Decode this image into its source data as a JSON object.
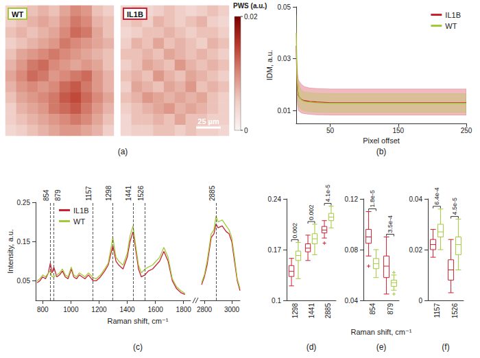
{
  "chart_data": [
    {
      "type": "heatmap",
      "label": "(a)",
      "images": [
        {
          "title": "WT",
          "color": "#a3c93a",
          "cells": [
            [
              0.004,
              0.005,
              0.006,
              0.007,
              0.006,
              0.008,
              0.01,
              0.009,
              0.006,
              0.005
            ],
            [
              0.005,
              0.006,
              0.007,
              0.008,
              0.007,
              0.009,
              0.011,
              0.01,
              0.007,
              0.006
            ],
            [
              0.006,
              0.007,
              0.006,
              0.007,
              0.008,
              0.01,
              0.012,
              0.011,
              0.008,
              0.006
            ],
            [
              0.005,
              0.006,
              0.007,
              0.008,
              0.009,
              0.011,
              0.01,
              0.009,
              0.008,
              0.007
            ],
            [
              0.006,
              0.008,
              0.009,
              0.01,
              0.011,
              0.01,
              0.009,
              0.008,
              0.007,
              0.006
            ],
            [
              0.007,
              0.009,
              0.011,
              0.012,
              0.01,
              0.009,
              0.008,
              0.009,
              0.008,
              0.006
            ],
            [
              0.008,
              0.01,
              0.012,
              0.011,
              0.009,
              0.01,
              0.011,
              0.012,
              0.009,
              0.007
            ],
            [
              0.007,
              0.009,
              0.01,
              0.009,
              0.01,
              0.012,
              0.013,
              0.011,
              0.009,
              0.007
            ],
            [
              0.006,
              0.008,
              0.009,
              0.01,
              0.011,
              0.013,
              0.014,
              0.012,
              0.01,
              0.008
            ],
            [
              0.005,
              0.007,
              0.008,
              0.009,
              0.011,
              0.012,
              0.013,
              0.011,
              0.009,
              0.007
            ],
            [
              0.005,
              0.006,
              0.007,
              0.008,
              0.009,
              0.01,
              0.011,
              0.01,
              0.008,
              0.006
            ],
            [
              0.004,
              0.005,
              0.006,
              0.007,
              0.008,
              0.009,
              0.009,
              0.008,
              0.007,
              0.005
            ]
          ]
        },
        {
          "title": "IL1B",
          "color": "#cc1f2f",
          "scale_bar": "25 µm",
          "cells": [
            [
              0.004,
              0.005,
              0.004,
              0.005,
              0.006,
              0.005,
              0.004,
              0.005,
              0.006,
              0.005
            ],
            [
              0.005,
              0.006,
              0.005,
              0.007,
              0.006,
              0.005,
              0.006,
              0.007,
              0.005,
              0.004
            ],
            [
              0.004,
              0.005,
              0.006,
              0.006,
              0.007,
              0.006,
              0.005,
              0.006,
              0.006,
              0.005
            ],
            [
              0.005,
              0.007,
              0.006,
              0.008,
              0.006,
              0.007,
              0.006,
              0.005,
              0.007,
              0.006
            ],
            [
              0.006,
              0.006,
              0.007,
              0.006,
              0.008,
              0.007,
              0.006,
              0.007,
              0.006,
              0.005
            ],
            [
              0.005,
              0.006,
              0.008,
              0.007,
              0.006,
              0.009,
              0.007,
              0.006,
              0.007,
              0.006
            ],
            [
              0.006,
              0.007,
              0.006,
              0.009,
              0.007,
              0.006,
              0.008,
              0.007,
              0.006,
              0.005
            ],
            [
              0.005,
              0.008,
              0.007,
              0.006,
              0.008,
              0.007,
              0.009,
              0.006,
              0.007,
              0.006
            ],
            [
              0.006,
              0.007,
              0.009,
              0.008,
              0.007,
              0.008,
              0.007,
              0.008,
              0.006,
              0.005
            ],
            [
              0.005,
              0.006,
              0.007,
              0.008,
              0.009,
              0.007,
              0.008,
              0.007,
              0.006,
              0.005
            ],
            [
              0.004,
              0.006,
              0.006,
              0.007,
              0.006,
              0.008,
              0.006,
              0.006,
              0.005,
              0.005
            ],
            [
              0.004,
              0.005,
              0.005,
              0.006,
              0.006,
              0.005,
              0.006,
              0.005,
              0.005,
              0.004
            ]
          ]
        }
      ],
      "colorbar": {
        "title": "PWS (a.u.)",
        "range": [
          0,
          0.02
        ],
        "ticks": [
          0,
          0.02
        ]
      }
    },
    {
      "type": "line",
      "label": "(b)",
      "xlabel": "Pixel offset",
      "ylabel": "IDM, a.u.",
      "x": [
        0,
        1,
        2,
        3,
        5,
        8,
        12,
        20,
        30,
        50,
        100,
        150,
        200,
        250
      ],
      "xlim": [
        0,
        250
      ],
      "xticks": [
        50,
        150,
        250
      ],
      "ylim": [
        0.005,
        0.05
      ],
      "yticks": [
        0.01,
        0.03,
        0.05
      ],
      "legend": "upper right",
      "series": [
        {
          "name": "IL1B",
          "color": "#cc1f2f",
          "values": [
            0.035,
            0.022,
            0.018,
            0.016,
            0.015,
            0.0142,
            0.0138,
            0.0135,
            0.0133,
            0.013,
            0.013,
            0.013,
            0.013,
            0.013
          ],
          "lower": [
            0.028,
            0.015,
            0.012,
            0.01,
            0.0095,
            0.009,
            0.0088,
            0.0085,
            0.0083,
            0.0082,
            0.0082,
            0.0082,
            0.0082,
            0.0082
          ],
          "upper": [
            0.042,
            0.029,
            0.024,
            0.022,
            0.021,
            0.02,
            0.0192,
            0.0187,
            0.0185,
            0.0183,
            0.0183,
            0.0183,
            0.0183,
            0.0183
          ]
        },
        {
          "name": "WT",
          "color": "#a3c93a",
          "values": [
            0.04,
            0.024,
            0.019,
            0.0165,
            0.015,
            0.014,
            0.0135,
            0.0132,
            0.013,
            0.0128,
            0.0128,
            0.0128,
            0.0128,
            0.0128
          ],
          "lower": [
            0.033,
            0.018,
            0.014,
            0.012,
            0.011,
            0.0103,
            0.0098,
            0.0095,
            0.0093,
            0.0092,
            0.0092,
            0.0092,
            0.0092,
            0.0092
          ],
          "upper": [
            0.047,
            0.03,
            0.024,
            0.021,
            0.019,
            0.0178,
            0.0172,
            0.0169,
            0.0167,
            0.0165,
            0.0165,
            0.0165,
            0.0165,
            0.0165
          ]
        }
      ]
    },
    {
      "type": "line",
      "label": "(c)",
      "xlabel": "Raman shift, cm⁻¹",
      "ylabel": "Intensity, a.u.",
      "x": [
        760,
        780,
        800,
        820,
        840,
        854,
        866,
        879,
        900,
        920,
        940,
        960,
        980,
        1003,
        1020,
        1040,
        1060,
        1080,
        1100,
        1125,
        1157,
        1180,
        1210,
        1240,
        1265,
        1298,
        1320,
        1340,
        1370,
        1400,
        1420,
        1441,
        1460,
        1480,
        1500,
        1526,
        1550,
        1580,
        1605,
        1630,
        1660,
        1690,
        1720,
        1750,
        1780,
        1810,
        2780,
        2800,
        2820,
        2850,
        2870,
        2885,
        2900,
        2930,
        2960,
        2980,
        3000,
        3020,
        3040,
        3060
      ],
      "segments": [
        {
          "xlim": [
            750,
            1850
          ],
          "xticks": [
            800,
            1000,
            1200,
            1400,
            1600,
            1800
          ]
        },
        {
          "xlim": [
            2770,
            3060
          ],
          "xticks": [
            2800,
            3000
          ]
        }
      ],
      "ylim": [
        0,
        0.25
      ],
      "yticks": [
        0.05,
        0.15,
        0.25
      ],
      "legend": "upper left",
      "peaks": [
        854,
        879,
        1157,
        1298,
        1441,
        1526,
        2885
      ],
      "series": [
        {
          "name": "IL1B",
          "color": "#cc1f2f",
          "values": [
            0.045,
            0.05,
            0.06,
            0.055,
            0.07,
            0.095,
            0.07,
            0.085,
            0.06,
            0.065,
            0.075,
            0.06,
            0.055,
            0.08,
            0.06,
            0.055,
            0.065,
            0.06,
            0.055,
            0.065,
            0.05,
            0.05,
            0.06,
            0.075,
            0.09,
            0.14,
            0.1,
            0.09,
            0.08,
            0.11,
            0.15,
            0.175,
            0.13,
            0.08,
            0.06,
            0.065,
            0.075,
            0.08,
            0.09,
            0.1,
            0.125,
            0.1,
            0.05,
            0.03,
            0.02,
            0.015,
            0.04,
            0.06,
            0.09,
            0.16,
            0.17,
            0.195,
            0.185,
            0.19,
            0.175,
            0.17,
            0.15,
            0.1,
            0.05,
            0.025
          ]
        },
        {
          "name": "WT",
          "color": "#a3c93a",
          "values": [
            0.05,
            0.055,
            0.065,
            0.06,
            0.07,
            0.075,
            0.06,
            0.06,
            0.065,
            0.07,
            0.08,
            0.065,
            0.06,
            0.085,
            0.065,
            0.06,
            0.07,
            0.065,
            0.06,
            0.07,
            0.058,
            0.055,
            0.065,
            0.08,
            0.095,
            0.16,
            0.11,
            0.1,
            0.09,
            0.12,
            0.165,
            0.19,
            0.14,
            0.09,
            0.07,
            0.08,
            0.085,
            0.09,
            0.1,
            0.11,
            0.135,
            0.11,
            0.055,
            0.035,
            0.025,
            0.018,
            0.045,
            0.065,
            0.1,
            0.17,
            0.18,
            0.215,
            0.2,
            0.205,
            0.19,
            0.18,
            0.16,
            0.11,
            0.055,
            0.03
          ]
        }
      ]
    },
    {
      "type": "boxplot",
      "label": "(d)",
      "categories": [
        "1298",
        "1441",
        "2885"
      ],
      "ylim": [
        0.1,
        0.24
      ],
      "yticks": [
        0.1,
        0.17,
        0.24
      ],
      "p_values": [
        "0.002",
        "0.002",
        "4.1e-5"
      ],
      "series": [
        {
          "name": "IL1B",
          "color": "#cc1f2f",
          "boxes": [
            [
              0.12,
              0.133,
              0.14,
              0.148,
              0.158
            ],
            [
              0.155,
              0.167,
              0.172,
              0.178,
              0.19
            ],
            [
              0.186,
              0.193,
              0.197,
              0.202,
              0.21
            ]
          ],
          "outliers": [
            [],
            [],
            [
              0.179
            ]
          ]
        },
        {
          "name": "WT",
          "color": "#a3c93a",
          "boxes": [
            [
              0.13,
              0.155,
              0.162,
              0.168,
              0.18
            ],
            [
              0.163,
              0.178,
              0.185,
              0.192,
              0.205
            ],
            [
              0.2,
              0.21,
              0.215,
              0.22,
              0.23
            ]
          ],
          "outliers": [
            [],
            [],
            []
          ]
        }
      ]
    },
    {
      "type": "boxplot",
      "label": "(e)",
      "xlabel": "Raman shift, cm⁻¹",
      "categories": [
        "854",
        "879"
      ],
      "ylim": [
        0.04,
        0.12
      ],
      "yticks": [
        0.04,
        0.08,
        0.12
      ],
      "p_values": [
        "1.8e-5",
        "3.5e-4"
      ],
      "series": [
        {
          "name": "IL1B",
          "color": "#cc1f2f",
          "boxes": [
            [
              0.075,
              0.085,
              0.09,
              0.096,
              0.11
            ],
            [
              0.045,
              0.058,
              0.067,
              0.075,
              0.09
            ]
          ],
          "outliers": [
            [
              0.067
            ],
            []
          ]
        },
        {
          "name": "WT",
          "color": "#a3c93a",
          "boxes": [
            [
              0.058,
              0.065,
              0.069,
              0.073,
              0.08
            ],
            [
              0.048,
              0.051,
              0.054,
              0.056,
              0.06
            ]
          ],
          "outliers": [
            [],
            [
              0.062,
              0.045
            ]
          ]
        }
      ]
    },
    {
      "type": "boxplot",
      "label": "(f)",
      "categories": [
        "1157",
        "1526"
      ],
      "ylim": [
        0,
        0.04
      ],
      "yticks": [
        0,
        0.02,
        0.04
      ],
      "p_values": [
        "6.4e-4",
        "4.5e-5"
      ],
      "series": [
        {
          "name": "IL1B",
          "color": "#cc1f2f",
          "boxes": [
            [
              0.017,
              0.02,
              0.022,
              0.024,
              0.028
            ],
            [
              0.003,
              0.008,
              0.012,
              0.016,
              0.024
            ]
          ],
          "outliers": [
            [],
            []
          ]
        },
        {
          "name": "WT",
          "color": "#a3c93a",
          "boxes": [
            [
              0.02,
              0.025,
              0.027,
              0.03,
              0.036
            ],
            [
              0.012,
              0.018,
              0.022,
              0.025,
              0.032
            ]
          ],
          "outliers": [
            [],
            []
          ]
        }
      ]
    }
  ]
}
